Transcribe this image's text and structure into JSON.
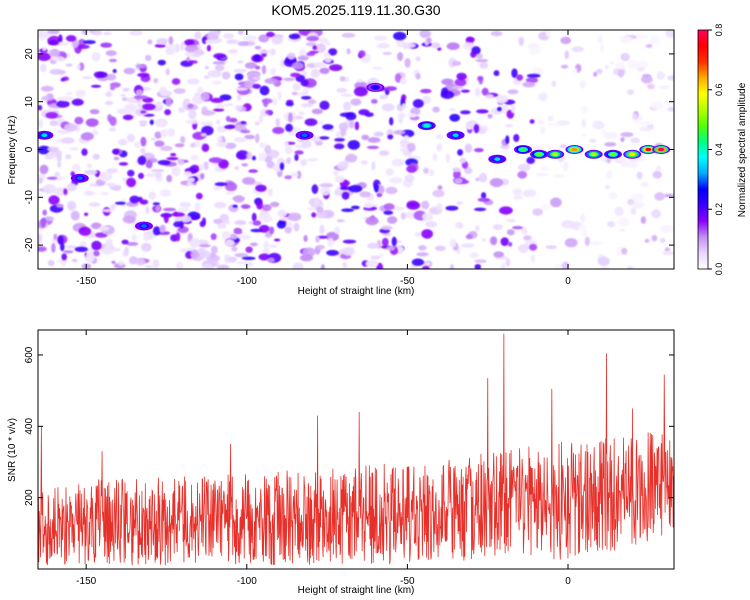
{
  "figure": {
    "title": "KOM5.2025.119.11.30.G30"
  },
  "chart_data": [
    {
      "type": "heatmap",
      "xlabel": "Height of straight line (km)",
      "ylabel": "Frequency (Hz)",
      "xlim": [
        -165,
        33
      ],
      "ylim": [
        -25,
        25
      ],
      "xticks": [
        -150,
        -100,
        -50,
        0
      ],
      "yticks": [
        -20,
        -10,
        0,
        10,
        20
      ],
      "colorbar": {
        "label": "Normalized spectral amplitude",
        "range": [
          0.0,
          0.8
        ],
        "ticks": [
          0.0,
          0.2,
          0.4,
          0.6,
          0.8
        ],
        "colors": [
          "#ffffff",
          "#e8d6ff",
          "#c48ff5",
          "#8b00ff",
          "#3a00ff",
          "#0000ff",
          "#00aaff",
          "#00ffff",
          "#00ff7f",
          "#55ff00",
          "#b4ff00",
          "#ffff00",
          "#ffaa00",
          "#ff3000",
          "#ff0000",
          "#ff0060"
        ]
      },
      "strong_features": [
        {
          "x": -163,
          "y": 3,
          "value": 0.35
        },
        {
          "x": -152,
          "y": -6,
          "value": 0.3
        },
        {
          "x": -132,
          "y": -16,
          "value": 0.3
        },
        {
          "x": -82,
          "y": 3,
          "value": 0.3
        },
        {
          "x": -60,
          "y": 13,
          "value": 0.25
        },
        {
          "x": -44,
          "y": 5,
          "value": 0.4
        },
        {
          "x": -35,
          "y": 3,
          "value": 0.35
        },
        {
          "x": -22,
          "y": -2,
          "value": 0.35
        },
        {
          "x": -14,
          "y": 0,
          "value": 0.45
        },
        {
          "x": -9,
          "y": -1,
          "value": 0.5
        },
        {
          "x": -4,
          "y": -1,
          "value": 0.55
        },
        {
          "x": 2,
          "y": 0,
          "value": 0.65
        },
        {
          "x": 8,
          "y": -1,
          "value": 0.55
        },
        {
          "x": 14,
          "y": -1,
          "value": 0.5
        },
        {
          "x": 20,
          "y": -1,
          "value": 0.6
        },
        {
          "x": 25,
          "y": 0,
          "value": 0.75
        },
        {
          "x": 29,
          "y": 0,
          "value": 0.8
        }
      ]
    },
    {
      "type": "line",
      "xlabel": "Height of straight line (km)",
      "ylabel": "SNR (10 * v/v)",
      "xlim": [
        -165,
        33
      ],
      "ylim": [
        0,
        670
      ],
      "xticks": [
        -150,
        -100,
        -50,
        0
      ],
      "yticks": [
        200,
        400,
        600
      ],
      "series": [
        {
          "color": "#e8302a",
          "x_start": -165,
          "x_end": 33,
          "n_samples": 1500,
          "envelope": [
            {
              "x": -165,
              "base": 125,
              "upper": 245,
              "lower": 10
            },
            {
              "x": -120,
              "base": 125,
              "upper": 260,
              "lower": 10
            },
            {
              "x": -80,
              "base": 140,
              "upper": 280,
              "lower": 10
            },
            {
              "x": -40,
              "base": 160,
              "upper": 310,
              "lower": 10
            },
            {
              "x": 0,
              "base": 200,
              "upper": 360,
              "lower": 20
            },
            {
              "x": 33,
              "base": 235,
              "upper": 400,
              "lower": 90
            }
          ],
          "peaks": [
            {
              "x": -164,
              "y": 400
            },
            {
              "x": -145,
              "y": 330
            },
            {
              "x": -105,
              "y": 350
            },
            {
              "x": -78,
              "y": 430
            },
            {
              "x": -65,
              "y": 440
            },
            {
              "x": -25,
              "y": 535
            },
            {
              "x": -20,
              "y": 660
            },
            {
              "x": -5,
              "y": 505
            },
            {
              "x": 12,
              "y": 605
            },
            {
              "x": 20,
              "y": 450
            },
            {
              "x": 30,
              "y": 545
            }
          ]
        }
      ]
    }
  ]
}
